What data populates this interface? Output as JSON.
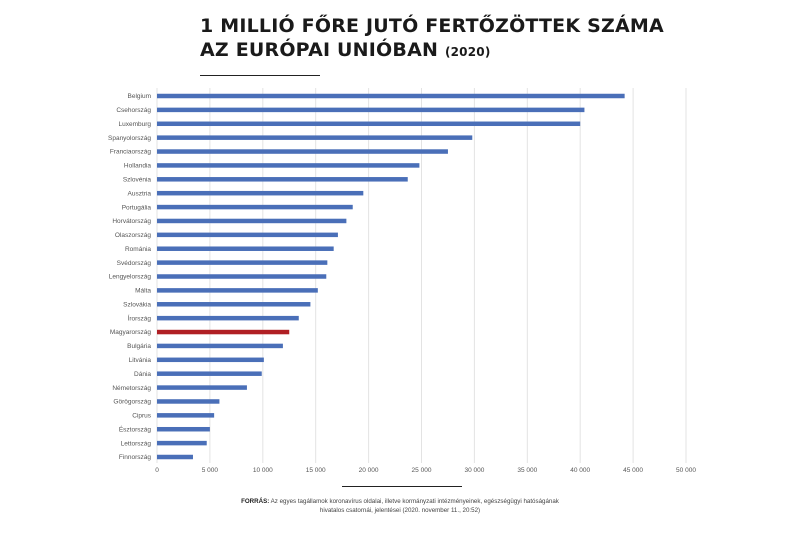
{
  "title": {
    "line1": "1 MILLIÓ FŐRE JUTÓ FERTŐZÖTTEK SZÁMA",
    "line2": "AZ EURÓPAI UNIÓBAN",
    "year": "(2020)"
  },
  "source": {
    "label": "FORRÁS:",
    "text": "Az egyes tagállamok koronavírus oldalai, illetve kormányzati intézményeinek, egészségügyi hatóságának hivatalos csatornái, jelentései (2020. november 11., 20:52)"
  },
  "colors": {
    "bar": "#4a6fb8",
    "highlight": "#b01f24",
    "grid": "#e3e3e3",
    "text": "#555555"
  },
  "chart_data": {
    "type": "bar",
    "orientation": "horizontal",
    "title": "1 MILLIÓ FŐRE JUTÓ FERTŐZÖTTEK SZÁMA AZ EURÓPAI UNIÓBAN (2020)",
    "categories": [
      "Belgium",
      "Csehország",
      "Luxemburg",
      "Spanyolország",
      "Franciaország",
      "Hollandia",
      "Szlovénia",
      "Ausztria",
      "Portugália",
      "Horvátország",
      "Olaszország",
      "Románia",
      "Svédország",
      "Lengyelország",
      "Málta",
      "Szlovákia",
      "Írország",
      "Magyarország",
      "Bulgária",
      "Litvánia",
      "Dánia",
      "Németország",
      "Görögország",
      "Ciprus",
      "Észtország",
      "Lettország",
      "Finnország"
    ],
    "values": [
      44200,
      40400,
      40000,
      29800,
      27500,
      24800,
      23700,
      19500,
      18500,
      17900,
      17100,
      16700,
      16100,
      16000,
      15200,
      14500,
      13400,
      12500,
      11900,
      10100,
      9900,
      8500,
      5900,
      5400,
      5000,
      4700,
      3400
    ],
    "highlight_category": "Magyarország",
    "xlim": [
      0,
      50000
    ],
    "xticks": [
      "0",
      "5 000",
      "10 000",
      "15 000",
      "20 000",
      "25 000",
      "30 000",
      "35 000",
      "40 000",
      "45 000",
      "50 000"
    ],
    "grid": true,
    "legend": "none"
  }
}
